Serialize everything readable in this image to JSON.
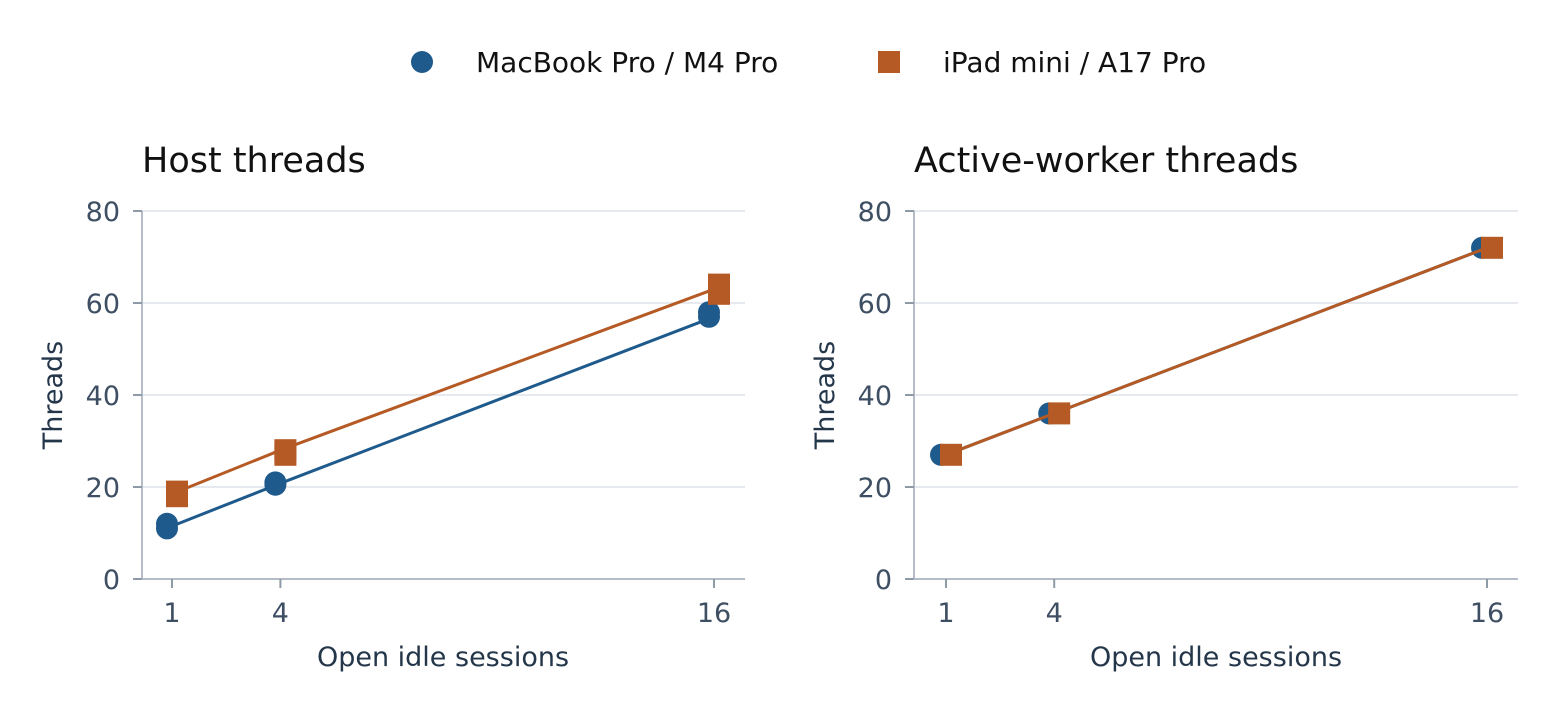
{
  "legend": [
    {
      "name": "MacBook Pro / M4 Pro",
      "color": "#1f5a8c",
      "marker": "circle"
    },
    {
      "name": "iPad mini / A17 Pro",
      "color": "#b55a24",
      "marker": "square"
    }
  ],
  "chart_data": [
    {
      "type": "line",
      "title": "Host threads",
      "xlabel": "Open idle sessions",
      "ylabel": "Threads",
      "x_ticks": [
        1,
        4,
        16
      ],
      "y_ticks": [
        0,
        20,
        40,
        60,
        80
      ],
      "xlim": [
        0.2,
        17
      ],
      "ylim": [
        0,
        80
      ],
      "grid": "horizontal",
      "series": [
        {
          "name": "MacBook Pro / M4 Pro",
          "line": [
            [
              1,
              11.5
            ],
            [
              4,
              20.8
            ],
            [
              16,
              57
            ]
          ],
          "points": [
            [
              1,
              11
            ],
            [
              1,
              12
            ],
            [
              4,
              20.5
            ],
            [
              4,
              21
            ],
            [
              16,
              57
            ],
            [
              16,
              58
            ]
          ]
        },
        {
          "name": "iPad mini / A17 Pro",
          "line": [
            [
              1,
              18.5
            ],
            [
              4,
              28
            ],
            [
              16,
              63
            ]
          ],
          "points": [
            [
              1,
              18
            ],
            [
              1,
              19
            ],
            [
              4,
              27
            ],
            [
              4,
              28
            ],
            [
              16,
              62
            ],
            [
              16,
              64
            ]
          ]
        }
      ]
    },
    {
      "type": "line",
      "title": "Active-worker threads",
      "xlabel": "Open idle sessions",
      "ylabel": "Threads",
      "x_ticks": [
        1,
        4,
        16
      ],
      "y_ticks": [
        0,
        20,
        40,
        60,
        80
      ],
      "xlim": [
        0.2,
        17
      ],
      "ylim": [
        0,
        80
      ],
      "grid": "horizontal",
      "series": [
        {
          "name": "MacBook Pro / M4 Pro",
          "line": [
            [
              1,
              27
            ],
            [
              4,
              36
            ],
            [
              16,
              72
            ]
          ],
          "points": [
            [
              1,
              27
            ],
            [
              4,
              36
            ],
            [
              16,
              72
            ]
          ]
        },
        {
          "name": "iPad mini / A17 Pro",
          "line": [
            [
              1,
              27
            ],
            [
              4,
              36
            ],
            [
              16,
              72
            ]
          ],
          "points": [
            [
              1,
              27
            ],
            [
              4,
              36
            ],
            [
              16,
              72
            ]
          ]
        }
      ]
    }
  ]
}
